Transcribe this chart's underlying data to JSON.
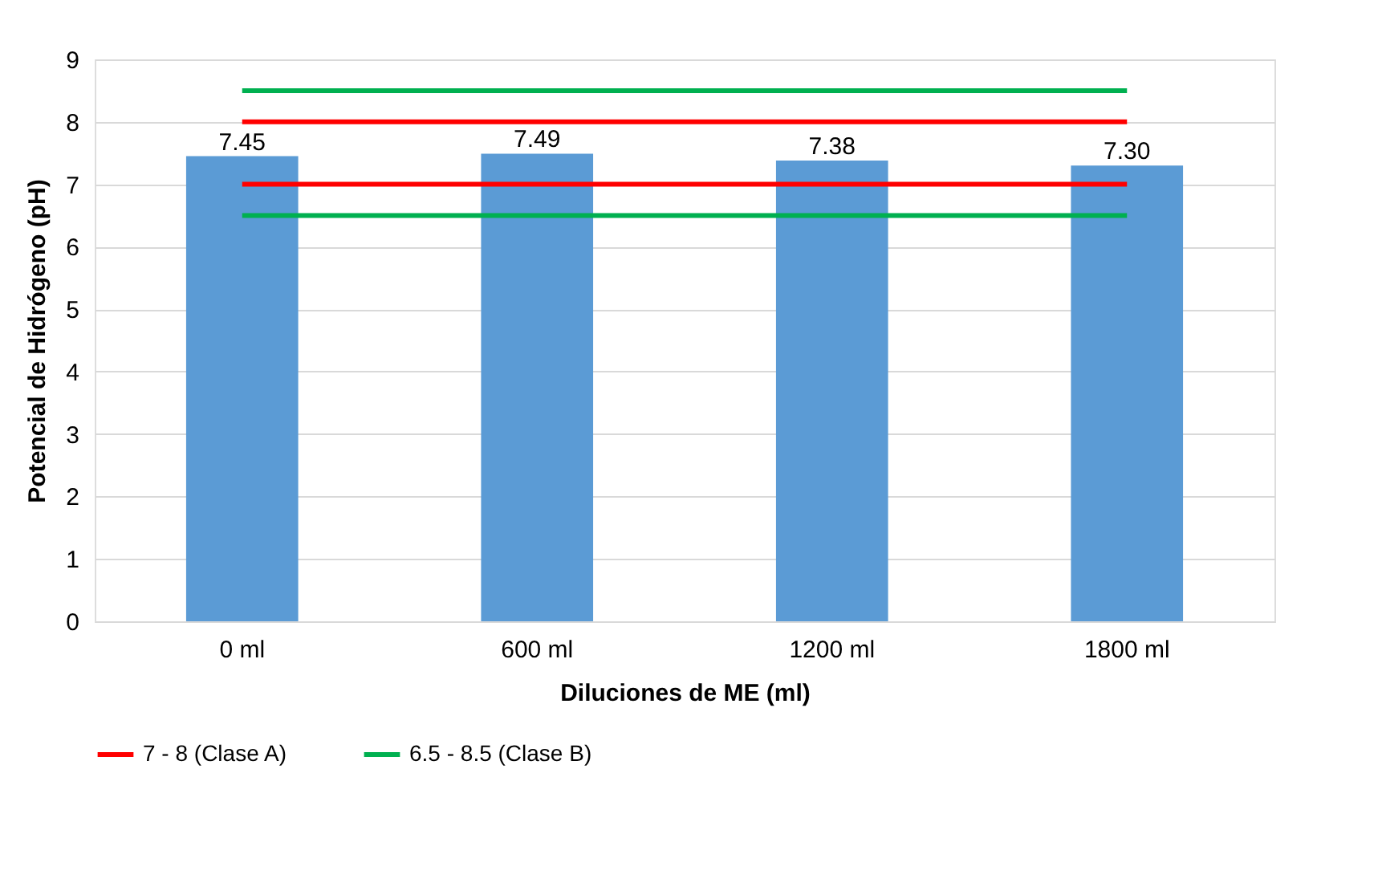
{
  "chart_data": {
    "type": "bar",
    "xlabel": "Diluciones de ME (ml)",
    "ylabel": "Potencial de Hidrógeno (pH)",
    "categories": [
      "0 ml",
      "600 ml",
      "1200 ml",
      "1800 ml"
    ],
    "series": [
      {
        "color": "#5b9bd5",
        "values": [
          7.45,
          7.49,
          7.38,
          7.3
        ],
        "value_labels": [
          "7.45",
          "7.49",
          "7.38",
          "7.30"
        ]
      },
      {
        "type": "line",
        "name": "7 - 8 (Clase A)",
        "color": "#ff0000",
        "values": [
          8,
          8,
          8,
          8
        ]
      },
      {
        "type": "line",
        "color": "#ff0000",
        "values": [
          7,
          7,
          7,
          7
        ]
      },
      {
        "type": "line",
        "name": "6.5 - 8.5 (Clase B)",
        "color": "#00b050",
        "values": [
          8.5,
          8.5,
          8.5,
          8.5
        ]
      },
      {
        "type": "line",
        "color": "#00b050",
        "values": [
          6.5,
          6.5,
          6.5,
          6.5
        ]
      }
    ],
    "ylim": [
      0,
      9
    ],
    "yticks": [
      0,
      1,
      2,
      3,
      4,
      5,
      6,
      7,
      8,
      9
    ],
    "grid": "y",
    "legend": "bottom",
    "marker": "none",
    "line_style": "solid"
  }
}
